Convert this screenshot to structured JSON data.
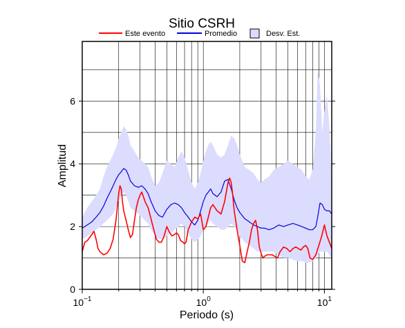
{
  "chart_data": {
    "type": "line",
    "title": "Sitio CSRH",
    "xlabel": "Periodo (s)",
    "ylabel": "Amplitud",
    "x_scale": "log",
    "xlim": [
      0.1,
      11.5
    ],
    "ylim": [
      0,
      7.9
    ],
    "grid": true,
    "legend_position": "top",
    "x_ticks": [
      {
        "value": 0.1,
        "base": "10",
        "exp": "−1"
      },
      {
        "value": 1,
        "base": "10",
        "exp": "0"
      },
      {
        "value": 10,
        "base": "10",
        "exp": "1"
      }
    ],
    "y_ticks": [
      0,
      2,
      4,
      6
    ],
    "legend": [
      {
        "label": "Este evento",
        "kind": "line",
        "color": "#ff0000"
      },
      {
        "label": "Promedio",
        "kind": "line",
        "color": "#0000dd"
      },
      {
        "label": "Desv. Est.",
        "kind": "fill",
        "color": "#dcdcff"
      }
    ],
    "band": {
      "name": "Desv. Est.",
      "color": "#dcdcff",
      "x": [
        0.1,
        0.11,
        0.12,
        0.13,
        0.14,
        0.15,
        0.16,
        0.17,
        0.18,
        0.19,
        0.2,
        0.21,
        0.22,
        0.23,
        0.24,
        0.25,
        0.27,
        0.29,
        0.31,
        0.33,
        0.35,
        0.37,
        0.4,
        0.43,
        0.46,
        0.5,
        0.54,
        0.58,
        0.62,
        0.66,
        0.7,
        0.75,
        0.8,
        0.85,
        0.9,
        0.95,
        1.0,
        1.05,
        1.1,
        1.15,
        1.2,
        1.3,
        1.4,
        1.5,
        1.6,
        1.7,
        1.8,
        1.9,
        2.0,
        2.2,
        2.4,
        2.6,
        2.8,
        3.0,
        3.2,
        3.5,
        3.8,
        4.2,
        4.6,
        5.0,
        5.5,
        6.0,
        6.5,
        7.0,
        7.5,
        8.0,
        8.5,
        8.8,
        9.2,
        9.6,
        10.0,
        10.5,
        11.0,
        11.5
      ],
      "upper": [
        2.3,
        2.6,
        2.8,
        3.0,
        3.2,
        3.6,
        3.9,
        4.1,
        4.3,
        4.5,
        4.8,
        5.0,
        5.2,
        5.1,
        4.9,
        4.6,
        4.4,
        4.2,
        4.1,
        4.0,
        3.9,
        3.6,
        3.3,
        3.4,
        3.7,
        4.1,
        4.0,
        3.9,
        4.2,
        4.4,
        4.2,
        3.8,
        3.4,
        3.2,
        3.4,
        3.7,
        4.1,
        4.4,
        4.6,
        4.7,
        4.6,
        4.3,
        4.2,
        4.3,
        4.6,
        4.9,
        4.8,
        4.6,
        4.3,
        3.9,
        3.8,
        3.7,
        3.5,
        3.4,
        3.5,
        3.6,
        3.8,
        3.9,
        4.0,
        4.1,
        4.0,
        3.9,
        3.8,
        3.6,
        3.5,
        3.8,
        5.0,
        7.0,
        6.5,
        5.0,
        5.7,
        6.2,
        5.2,
        3.5
      ],
      "lower": [
        1.6,
        1.7,
        1.8,
        1.9,
        2.0,
        2.1,
        2.2,
        2.3,
        2.4,
        2.6,
        2.8,
        3.0,
        3.1,
        3.0,
        2.8,
        2.6,
        2.5,
        2.4,
        2.3,
        2.2,
        2.1,
        1.9,
        1.7,
        1.6,
        1.6,
        1.7,
        1.8,
        1.9,
        2.0,
        2.1,
        2.0,
        1.8,
        1.6,
        1.5,
        1.6,
        1.7,
        1.9,
        2.0,
        2.1,
        2.2,
        2.1,
        2.0,
        1.9,
        1.9,
        2.0,
        2.1,
        2.0,
        1.9,
        1.7,
        1.5,
        1.4,
        1.3,
        1.2,
        1.2,
        1.2,
        1.2,
        1.2,
        1.1,
        1.0,
        1.0,
        0.95,
        0.9,
        0.9,
        0.85,
        0.85,
        0.9,
        1.0,
        1.1,
        1.2,
        1.2,
        1.2,
        1.2,
        1.1,
        1.0
      ]
    },
    "series": [
      {
        "name": "Promedio",
        "color": "#0000dd",
        "x": [
          0.1,
          0.11,
          0.12,
          0.13,
          0.14,
          0.15,
          0.16,
          0.17,
          0.18,
          0.19,
          0.2,
          0.21,
          0.22,
          0.23,
          0.24,
          0.25,
          0.27,
          0.29,
          0.31,
          0.33,
          0.35,
          0.37,
          0.4,
          0.43,
          0.46,
          0.5,
          0.54,
          0.58,
          0.62,
          0.66,
          0.7,
          0.75,
          0.8,
          0.85,
          0.9,
          0.95,
          1.0,
          1.05,
          1.1,
          1.15,
          1.2,
          1.3,
          1.4,
          1.5,
          1.6,
          1.7,
          1.8,
          1.9,
          2.0,
          2.2,
          2.4,
          2.6,
          2.8,
          3.0,
          3.2,
          3.5,
          3.8,
          4.2,
          4.6,
          5.0,
          5.5,
          6.0,
          6.5,
          7.0,
          7.5,
          8.0,
          8.5,
          8.8,
          9.2,
          9.6,
          10.0,
          10.5,
          11.0,
          11.5
        ],
        "values": [
          1.95,
          2.05,
          2.15,
          2.3,
          2.45,
          2.65,
          2.9,
          3.1,
          3.3,
          3.5,
          3.65,
          3.75,
          3.85,
          3.8,
          3.65,
          3.45,
          3.3,
          3.25,
          3.3,
          3.2,
          3.05,
          2.8,
          2.5,
          2.35,
          2.3,
          2.55,
          2.7,
          2.75,
          2.7,
          2.6,
          2.45,
          2.3,
          2.15,
          2.05,
          2.2,
          2.5,
          2.8,
          3.0,
          3.1,
          3.2,
          3.05,
          2.95,
          3.1,
          3.45,
          3.5,
          3.2,
          2.85,
          2.6,
          2.45,
          2.25,
          2.15,
          2.05,
          2.0,
          1.95,
          1.95,
          1.9,
          1.95,
          2.05,
          2.0,
          2.05,
          2.1,
          2.05,
          2.0,
          1.95,
          1.9,
          1.9,
          2.0,
          2.3,
          2.75,
          2.7,
          2.55,
          2.5,
          2.5,
          2.4
        ]
      },
      {
        "name": "Este evento",
        "color": "#ff0000",
        "x": [
          0.1,
          0.105,
          0.11,
          0.115,
          0.12,
          0.125,
          0.13,
          0.135,
          0.14,
          0.145,
          0.15,
          0.16,
          0.17,
          0.18,
          0.19,
          0.2,
          0.205,
          0.21,
          0.215,
          0.22,
          0.23,
          0.24,
          0.25,
          0.26,
          0.27,
          0.28,
          0.29,
          0.3,
          0.31,
          0.32,
          0.33,
          0.35,
          0.37,
          0.39,
          0.41,
          0.43,
          0.45,
          0.47,
          0.5,
          0.52,
          0.55,
          0.58,
          0.6,
          0.62,
          0.65,
          0.68,
          0.7,
          0.72,
          0.75,
          0.8,
          0.85,
          0.9,
          0.95,
          1.0,
          1.05,
          1.1,
          1.15,
          1.2,
          1.3,
          1.4,
          1.5,
          1.6,
          1.65,
          1.7,
          1.75,
          1.8,
          1.85,
          1.9,
          2.0,
          2.1,
          2.2,
          2.3,
          2.4,
          2.5,
          2.6,
          2.7,
          2.8,
          2.9,
          3.0,
          3.1,
          3.2,
          3.35,
          3.5,
          3.7,
          3.9,
          4.1,
          4.3,
          4.6,
          4.9,
          5.2,
          5.5,
          5.8,
          6.1,
          6.4,
          6.7,
          7.0,
          7.3,
          7.6,
          8.0,
          8.5,
          9.0,
          9.5,
          10.0,
          10.5,
          11.0,
          11.5
        ],
        "values": [
          1.2,
          1.5,
          1.55,
          1.65,
          1.75,
          1.85,
          1.6,
          1.3,
          1.2,
          1.15,
          1.1,
          1.15,
          1.3,
          1.6,
          2.2,
          3.05,
          3.3,
          3.2,
          2.8,
          2.5,
          2.2,
          1.9,
          1.65,
          1.75,
          2.2,
          2.6,
          2.85,
          3.0,
          3.1,
          2.95,
          2.8,
          2.6,
          2.25,
          1.9,
          1.6,
          1.5,
          1.5,
          1.65,
          2.0,
          1.85,
          1.7,
          1.75,
          1.8,
          1.75,
          1.55,
          1.5,
          1.45,
          1.5,
          1.9,
          2.15,
          2.3,
          2.25,
          2.4,
          1.9,
          2.0,
          2.3,
          2.6,
          2.7,
          2.5,
          2.4,
          2.8,
          3.4,
          3.55,
          3.4,
          3.0,
          2.5,
          2.2,
          1.9,
          1.4,
          0.9,
          0.85,
          1.2,
          1.5,
          1.9,
          2.1,
          2.2,
          1.9,
          1.35,
          1.15,
          1.0,
          1.05,
          1.1,
          1.1,
          1.1,
          1.05,
          1.0,
          1.2,
          1.35,
          1.3,
          1.2,
          1.3,
          1.35,
          1.3,
          1.25,
          1.35,
          1.4,
          1.3,
          1.0,
          0.95,
          1.1,
          1.4,
          1.7,
          2.05,
          1.7,
          1.5,
          1.3
        ]
      }
    ]
  }
}
